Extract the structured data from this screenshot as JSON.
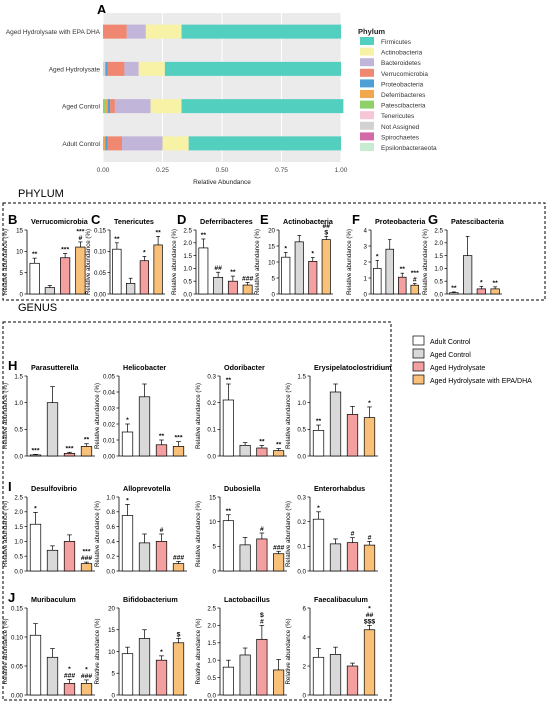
{
  "figure": {
    "panel_labels": {
      "A": "A",
      "B": "B",
      "C": "C",
      "D": "D",
      "E": "E",
      "F": "F",
      "G": "G",
      "H": "H",
      "I": "I",
      "J": "J"
    },
    "section_phylum": "PHYLUM",
    "section_genus": "GENUS",
    "ylabel": "Relative abundance (%)"
  },
  "legend_groups": [
    {
      "label": "Adult Control",
      "color": "#ffffff"
    },
    {
      "label": "Aged Control",
      "color": "#d9d9d9"
    },
    {
      "label": "Aged Hydrolysate",
      "color": "#f4a0a0"
    },
    {
      "label": "Aged Hydrolysate with EPA/DHA",
      "color": "#f9c07a"
    }
  ],
  "chart_data": [
    {
      "id": "A",
      "type": "bar",
      "orientation": "horizontal",
      "stacked": true,
      "xlabel": "Relative Abundance",
      "xlim": [
        0,
        1
      ],
      "xticks": [
        "0.00",
        "0.25",
        "0.50",
        "0.75",
        "1.00"
      ],
      "categories": [
        "Aged Hydrolysate with EPA DHA",
        "Aged Hydrolysate",
        "Aged Control",
        "Adult Control"
      ],
      "legend_title": "Phylum",
      "series": [
        {
          "name": "Epsilonbacteraeota",
          "color": "#c8ecd2",
          "values": [
            0,
            0,
            0,
            0
          ]
        },
        {
          "name": "Spirochaetes",
          "color": "#d36aa8",
          "values": [
            0,
            0,
            0,
            0
          ]
        },
        {
          "name": "Not Assigned",
          "color": "#d2d2d2",
          "values": [
            0,
            0.01,
            0,
            0
          ]
        },
        {
          "name": "Tenericutes",
          "color": "#f7c5d8",
          "values": [
            0,
            0,
            0,
            0
          ]
        },
        {
          "name": "Patescibacteria",
          "color": "#8fd06a",
          "values": [
            0,
            0,
            0.01,
            0
          ]
        },
        {
          "name": "Deferribacteres",
          "color": "#f3a74c",
          "values": [
            0,
            0,
            0.01,
            0.01
          ]
        },
        {
          "name": "Proteobacteria",
          "color": "#4d9fd6",
          "values": [
            0,
            0.01,
            0.01,
            0.01
          ]
        },
        {
          "name": "Verrucomicrobia",
          "color": "#f08770",
          "values": [
            0.1,
            0.07,
            0.02,
            0.06
          ]
        },
        {
          "name": "Bacteroidetes",
          "color": "#c2b5da",
          "values": [
            0.08,
            0.06,
            0.15,
            0.17
          ]
        },
        {
          "name": "Actinobacteria",
          "color": "#f7f2a6",
          "values": [
            0.15,
            0.11,
            0.13,
            0.11
          ]
        },
        {
          "name": "Firmicutes",
          "color": "#52cfbf",
          "values": [
            0.67,
            0.74,
            0.68,
            0.64
          ]
        }
      ]
    },
    {
      "id": "B",
      "type": "bar",
      "title": "Verrucomicrobia",
      "ylabel": "Relative abundance (%)",
      "ylim": [
        0,
        15
      ],
      "yticks": [
        "0",
        "5",
        "10",
        "15"
      ],
      "categories": [
        "Adult Control",
        "Aged Control",
        "Aged Hydrolysate",
        "Aged Hydrolysate with EPA/DHA"
      ],
      "values": [
        7.2,
        1.5,
        8.5,
        11.0
      ],
      "errors": [
        1.2,
        0.5,
        1.0,
        1.2
      ],
      "annotations": [
        "**",
        "",
        "***",
        "***\n#"
      ]
    },
    {
      "id": "C",
      "type": "bar",
      "title": "Tenericutes",
      "ylabel": "Relative abundance (%)",
      "ylim": [
        0,
        0.15
      ],
      "yticks": [
        "0.00",
        "0.05",
        "0.10",
        "0.15"
      ],
      "categories": [
        "Adult Control",
        "Aged Control",
        "Aged Hydrolysate",
        "Aged Hydrolysate with EPA/DHA"
      ],
      "values": [
        0.105,
        0.025,
        0.078,
        0.115
      ],
      "errors": [
        0.015,
        0.012,
        0.01,
        0.02
      ],
      "annotations": [
        "**",
        "",
        "*",
        "**"
      ]
    },
    {
      "id": "D",
      "type": "bar",
      "title": "Deferribacteres",
      "ylabel": "Relative abundance (%)",
      "ylim": [
        0,
        2.5
      ],
      "yticks": [
        "0.0",
        "0.5",
        "1.0",
        "1.5",
        "2.0",
        "2.5"
      ],
      "categories": [
        "Adult Control",
        "Aged Control",
        "Aged Hydrolysate",
        "Aged Hydrolysate with EPA/DHA"
      ],
      "values": [
        1.8,
        0.65,
        0.5,
        0.35
      ],
      "errors": [
        0.35,
        0.2,
        0.2,
        0.1
      ],
      "annotations": [
        "**",
        "##",
        "**",
        "###"
      ]
    },
    {
      "id": "E",
      "type": "bar",
      "title": "Actinobacteria",
      "ylabel": "Relative abundance (%)",
      "ylim": [
        0,
        20
      ],
      "yticks": [
        "0",
        "5",
        "10",
        "15",
        "20"
      ],
      "categories": [
        "Adult Control",
        "Aged Control",
        "Aged Hydrolysate",
        "Aged Hydrolysate with EPA/DHA"
      ],
      "values": [
        11.5,
        16.3,
        10.2,
        17.0
      ],
      "errors": [
        1.5,
        2.0,
        1.2,
        1.0
      ],
      "annotations": [
        "*",
        "",
        "*",
        "##\n$"
      ]
    },
    {
      "id": "F",
      "type": "bar",
      "title": "Proteobacteria",
      "ylabel": "Relative abundance (%)",
      "ylim": [
        0,
        4
      ],
      "yticks": [
        "0",
        "1",
        "2",
        "3",
        "4"
      ],
      "categories": [
        "Adult Control",
        "Aged Control",
        "Aged Hydrolysate",
        "Aged Hydrolysate with EPA/DHA"
      ],
      "values": [
        1.6,
        2.8,
        1.05,
        0.55
      ],
      "errors": [
        0.5,
        0.6,
        0.25,
        0.1
      ],
      "annotations": [
        "*",
        "",
        "**",
        "***\n#"
      ]
    },
    {
      "id": "G",
      "type": "bar",
      "title": "Patescibacteria",
      "ylabel": "Relative abundance (%)",
      "ylim": [
        0,
        2.5
      ],
      "yticks": [
        "0.0",
        "0.5",
        "1.0",
        "1.5",
        "2.0",
        "2.5"
      ],
      "categories": [
        "Adult Control",
        "Aged Control",
        "Aged Hydrolysate",
        "Aged Hydrolysate with EPA/DHA"
      ],
      "values": [
        0.05,
        1.5,
        0.2,
        0.2
      ],
      "errors": [
        0.03,
        0.75,
        0.1,
        0.08
      ],
      "annotations": [
        "**",
        "",
        "*",
        "**"
      ]
    },
    {
      "id": "H1",
      "type": "bar",
      "title": "Parasutterella",
      "ylabel": "Relative abundance (%)",
      "ylim": [
        0,
        1.5
      ],
      "yticks": [
        "0.0",
        "0.5",
        "1.0",
        "1.5"
      ],
      "categories": [
        "Adult Control",
        "Aged Control",
        "Aged Hydrolysate",
        "Aged Hydrolysate with EPA/DHA"
      ],
      "values": [
        0.02,
        1.0,
        0.05,
        0.18
      ],
      "errors": [
        0.01,
        0.3,
        0.02,
        0.05
      ],
      "annotations": [
        "***",
        "",
        "***",
        "**"
      ]
    },
    {
      "id": "H2",
      "type": "bar",
      "title": "Helicobacter",
      "ylabel": "Relative abundance (%)",
      "ylim": [
        0,
        0.05
      ],
      "yticks": [
        "0.00",
        "0.01",
        "0.02",
        "0.03",
        "0.04",
        "0.05"
      ],
      "categories": [
        "Adult Control",
        "Aged Control",
        "Aged Hydrolysate",
        "Aged Hydrolysate with EPA/DHA"
      ],
      "values": [
        0.015,
        0.037,
        0.007,
        0.006
      ],
      "errors": [
        0.005,
        0.008,
        0.003,
        0.003
      ],
      "annotations": [
        "*",
        "",
        "**",
        "***"
      ]
    },
    {
      "id": "H3",
      "type": "bar",
      "title": "Odoribacter",
      "ylabel": "Relative abundance (%)",
      "ylim": [
        0,
        0.3
      ],
      "yticks": [
        "0.0",
        "0.1",
        "0.2",
        "0.3"
      ],
      "categories": [
        "Adult Control",
        "Aged Control",
        "Aged Hydrolysate",
        "Aged Hydrolysate with EPA/DHA"
      ],
      "values": [
        0.21,
        0.04,
        0.03,
        0.02
      ],
      "errors": [
        0.06,
        0.01,
        0.01,
        0.008
      ],
      "annotations": [
        "**",
        "",
        "**",
        "**"
      ]
    },
    {
      "id": "H4",
      "type": "bar",
      "title": "Erysipelatoclostridium",
      "ylabel": "Relative abundance (%)",
      "ylim": [
        0,
        1.5
      ],
      "yticks": [
        "0.0",
        "0.5",
        "1.0",
        "1.5"
      ],
      "categories": [
        "Adult Control",
        "Aged Control",
        "Aged Hydrolysate",
        "Aged Hydrolysate with EPA/DHA"
      ],
      "values": [
        0.48,
        1.2,
        0.78,
        0.72
      ],
      "errors": [
        0.1,
        0.15,
        0.15,
        0.2
      ],
      "annotations": [
        "**",
        "",
        "",
        "*"
      ]
    },
    {
      "id": "I1",
      "type": "bar",
      "title": "Desulfovibrio",
      "ylabel": "Relative abundance (%)",
      "ylim": [
        0,
        2.5
      ],
      "yticks": [
        "0.0",
        "0.5",
        "1.0",
        "1.5",
        "2.0",
        "2.5"
      ],
      "categories": [
        "Adult Control",
        "Aged Control",
        "Aged Hydrolysate",
        "Aged Hydrolysate with EPA/DHA"
      ],
      "values": [
        1.58,
        0.7,
        1.0,
        0.25
      ],
      "errors": [
        0.4,
        0.15,
        0.22,
        0.05
      ],
      "annotations": [
        "*",
        "",
        "",
        "***\n###"
      ]
    },
    {
      "id": "I2",
      "type": "bar",
      "title": "Alloprevotella",
      "ylabel": "Relative abundance (%)",
      "ylim": [
        0,
        1
      ],
      "yticks": [
        "0.0",
        "0.2",
        "0.4",
        "0.6",
        "0.8",
        "1.0"
      ],
      "categories": [
        "Adult Control",
        "Aged Control",
        "Aged Hydrolysate",
        "Aged Hydrolysate with EPA/DHA"
      ],
      "values": [
        0.75,
        0.38,
        0.4,
        0.1
      ],
      "errors": [
        0.15,
        0.12,
        0.1,
        0.03
      ],
      "annotations": [
        "*",
        "",
        "#",
        "###"
      ]
    },
    {
      "id": "I3",
      "type": "bar",
      "title": "Dubosiella",
      "ylabel": "Relative abundance (%)",
      "ylim": [
        0,
        15
      ],
      "yticks": [
        "0",
        "5",
        "10",
        "15"
      ],
      "categories": [
        "Adult Control",
        "Aged Control",
        "Aged Hydrolysate",
        "Aged Hydrolysate with EPA/DHA"
      ],
      "values": [
        10.2,
        5.3,
        6.5,
        3.5
      ],
      "errors": [
        1.2,
        1.5,
        1.2,
        0.5
      ],
      "annotations": [
        "**",
        "",
        "#",
        "###"
      ]
    },
    {
      "id": "I4",
      "type": "bar",
      "title": "Enterorhabdus",
      "ylabel": "Relative abundance (%)",
      "ylim": [
        0,
        0.3
      ],
      "yticks": [
        "0.0",
        "0.1",
        "0.2",
        "0.3"
      ],
      "categories": [
        "Adult Control",
        "Aged Control",
        "Aged Hydrolysate",
        "Aged Hydrolysate with EPA/DHA"
      ],
      "values": [
        0.21,
        0.11,
        0.115,
        0.105
      ],
      "errors": [
        0.03,
        0.02,
        0.02,
        0.015
      ],
      "annotations": [
        "*",
        "",
        "#",
        "#"
      ]
    },
    {
      "id": "J1",
      "type": "bar",
      "title": "Muribaculum",
      "ylabel": "Relative abundance (%)",
      "ylim": [
        0,
        0.15
      ],
      "yticks": [
        "0.00",
        "0.05",
        "0.10",
        "0.15"
      ],
      "categories": [
        "Adult Control",
        "Aged Control",
        "Aged Hydrolysate",
        "Aged Hydrolysate with EPA/DHA"
      ],
      "values": [
        0.103,
        0.065,
        0.02,
        0.02
      ],
      "errors": [
        0.02,
        0.015,
        0.007,
        0.006
      ],
      "annotations": [
        "",
        "",
        "*\n###",
        "*\n###"
      ]
    },
    {
      "id": "J2",
      "type": "bar",
      "title": "Bifidobacterium",
      "ylabel": "Relative abundance (%)",
      "ylim": [
        0,
        20
      ],
      "yticks": [
        "0",
        "5",
        "10",
        "15",
        "20"
      ],
      "categories": [
        "Adult Control",
        "Aged Control",
        "Aged Hydrolysate",
        "Aged Hydrolysate with EPA/DHA"
      ],
      "values": [
        9.5,
        13.0,
        8.0,
        12.0
      ],
      "errors": [
        1.5,
        2.0,
        1.0,
        1.0
      ],
      "annotations": [
        "",
        "",
        "*",
        "$"
      ]
    },
    {
      "id": "J3",
      "type": "bar",
      "title": "Lactobacillus",
      "ylabel": "Relative abundance (%)",
      "ylim": [
        0,
        2.5
      ],
      "yticks": [
        "0.0",
        "0.5",
        "1.0",
        "1.5",
        "2.0",
        "2.5"
      ],
      "categories": [
        "Adult Control",
        "Aged Control",
        "Aged Hydrolysate",
        "Aged Hydrolysate with EPA/DHA"
      ],
      "values": [
        0.8,
        1.15,
        1.6,
        0.72
      ],
      "errors": [
        0.2,
        0.2,
        0.4,
        0.3
      ],
      "annotations": [
        "",
        "",
        "$\n#",
        ""
      ]
    },
    {
      "id": "J4",
      "type": "bar",
      "title": "Faecalibaculum",
      "ylabel": "Relative abundance (%)",
      "ylim": [
        0,
        6
      ],
      "yticks": [
        "0",
        "2",
        "4",
        "6"
      ],
      "categories": [
        "Adult Control",
        "Aged Control",
        "Aged Hydrolysate",
        "Aged Hydrolysate with EPA/DHA"
      ],
      "values": [
        2.6,
        2.8,
        2.0,
        4.5
      ],
      "errors": [
        0.6,
        0.5,
        0.2,
        0.3
      ],
      "annotations": [
        "",
        "",
        "",
        "*\n##\n$$$"
      ]
    }
  ]
}
